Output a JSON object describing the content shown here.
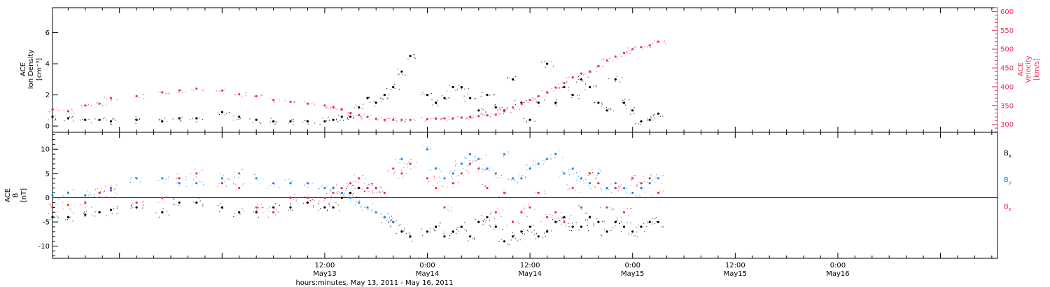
{
  "chart_data": [
    {
      "type": "scatter",
      "panel": "top",
      "ylabel_left": [
        "ACE",
        "Ion Density",
        "[cm⁻³]"
      ],
      "ylabel_right": [
        "ACE",
        "Velocity",
        "[km/s]"
      ],
      "ylim_left": [
        -0.4,
        7.6
      ],
      "ylim_right": [
        279,
        610
      ],
      "yticks_left": [
        0,
        2,
        4,
        6
      ],
      "yticks_right": [
        300,
        350,
        400,
        450,
        500,
        550,
        600
      ],
      "color_left": "#000000",
      "color_right": "#e8305a",
      "series": [
        {
          "axis": "left",
          "color": "#000000",
          "x": [
            "2011-05-12T04:10",
            "2011-05-12T06:00",
            "2011-05-12T08:00",
            "2011-05-12T09:40",
            "2011-05-12T11:00",
            "2011-05-12T14:00",
            "2011-05-12T17:00",
            "2011-05-12T19:00",
            "2011-05-12T21:00",
            "2011-05-13T00:00",
            "2011-05-13T02:00",
            "2011-05-13T04:00",
            "2011-05-13T06:00",
            "2011-05-13T08:00",
            "2011-05-13T10:00",
            "2011-05-13T12:00",
            "2011-05-13T13:00",
            "2011-05-13T14:00",
            "2011-05-13T15:00",
            "2011-05-13T16:00",
            "2011-05-13T17:00",
            "2011-05-13T18:00",
            "2011-05-13T19:00",
            "2011-05-13T20:00",
            "2011-05-13T21:00",
            "2011-05-13T22:00",
            "2011-05-14T00:00",
            "2011-05-14T01:00",
            "2011-05-14T02:00",
            "2011-05-14T03:00",
            "2011-05-14T04:00",
            "2011-05-14T05:00",
            "2011-05-14T06:00",
            "2011-05-14T07:00",
            "2011-05-14T08:00",
            "2011-05-14T09:00",
            "2011-05-14T10:00",
            "2011-05-14T11:00",
            "2011-05-14T12:00",
            "2011-05-14T13:00",
            "2011-05-14T14:00",
            "2011-05-14T15:00",
            "2011-05-14T16:00",
            "2011-05-14T17:00",
            "2011-05-14T18:00",
            "2011-05-14T19:00",
            "2011-05-14T20:00",
            "2011-05-14T21:00",
            "2011-05-14T22:00",
            "2011-05-14T23:00",
            "2011-05-15T00:00",
            "2011-05-15T01:00",
            "2011-05-15T02:00",
            "2011-05-15T03:00"
          ],
          "y": [
            0.6,
            0.5,
            0.4,
            0.4,
            0.3,
            0.4,
            0.3,
            0.5,
            0.5,
            0.9,
            0.6,
            0.4,
            0.3,
            0.3,
            0.3,
            0.3,
            0.4,
            0.6,
            0.6,
            1.2,
            1.8,
            1.5,
            2.0,
            2.5,
            3.5,
            4.5,
            2.0,
            1.5,
            1.8,
            2.5,
            2.5,
            1.8,
            1.0,
            2.0,
            1.2,
            1.0,
            3.0,
            1.5,
            0.4,
            1.5,
            4.0,
            1.5,
            2.5,
            2.0,
            3.0,
            2.5,
            1.5,
            1.0,
            3.0,
            1.5,
            1.0,
            0.3,
            0.4,
            0.8
          ]
        },
        {
          "axis": "right",
          "color": "#e8305a",
          "x": [
            "2011-05-12T04:10",
            "2011-05-12T06:00",
            "2011-05-12T08:00",
            "2011-05-12T09:40",
            "2011-05-12T11:00",
            "2011-05-12T14:00",
            "2011-05-12T17:00",
            "2011-05-12T19:00",
            "2011-05-12T21:00",
            "2011-05-13T00:00",
            "2011-05-13T02:00",
            "2011-05-13T04:00",
            "2011-05-13T06:00",
            "2011-05-13T08:00",
            "2011-05-13T10:00",
            "2011-05-13T12:00",
            "2011-05-13T13:00",
            "2011-05-13T14:00",
            "2011-05-13T15:00",
            "2011-05-13T16:00",
            "2011-05-13T17:00",
            "2011-05-13T18:00",
            "2011-05-13T19:00",
            "2011-05-13T20:00",
            "2011-05-13T21:00",
            "2011-05-13T22:00",
            "2011-05-14T00:00",
            "2011-05-14T01:00",
            "2011-05-14T02:00",
            "2011-05-14T03:00",
            "2011-05-14T04:00",
            "2011-05-14T05:00",
            "2011-05-14T06:00",
            "2011-05-14T07:00",
            "2011-05-14T08:00",
            "2011-05-14T09:00",
            "2011-05-14T10:00",
            "2011-05-14T11:00",
            "2011-05-14T12:00",
            "2011-05-14T13:00",
            "2011-05-14T14:00",
            "2011-05-14T15:00",
            "2011-05-14T16:00",
            "2011-05-14T17:00",
            "2011-05-14T18:00",
            "2011-05-14T19:00",
            "2011-05-14T20:00",
            "2011-05-14T21:00",
            "2011-05-14T22:00",
            "2011-05-14T23:00",
            "2011-05-15T00:00",
            "2011-05-15T01:00",
            "2011-05-15T02:00",
            "2011-05-15T03:00"
          ],
          "y": [
            340,
            335,
            350,
            355,
            370,
            375,
            385,
            390,
            395,
            390,
            380,
            375,
            365,
            360,
            355,
            350,
            345,
            340,
            330,
            325,
            320,
            315,
            312,
            312,
            312,
            312,
            314,
            315,
            316,
            316,
            318,
            320,
            322,
            324,
            326,
            335,
            345,
            355,
            365,
            375,
            385,
            398,
            410,
            425,
            435,
            440,
            455,
            470,
            480,
            490,
            500,
            505,
            510,
            520
          ]
        }
      ]
    },
    {
      "type": "scatter",
      "panel": "bottom",
      "ylabel": [
        "ACE",
        "B",
        "[nT]"
      ],
      "ylim": [
        -12.5,
        13.5
      ],
      "yticks": [
        -10,
        -5,
        0,
        5,
        10
      ],
      "zero_line": true,
      "legend": [
        {
          "label": "Bx",
          "base": "B",
          "sub": "x",
          "color": "#000000"
        },
        {
          "label": "By",
          "base": "B",
          "sub": "y",
          "color": "#1e88e5"
        },
        {
          "label": "Bz",
          "base": "B",
          "sub": "z",
          "color": "#e8305a"
        }
      ],
      "series": [
        {
          "name": "Bx",
          "color": "#000000",
          "x": [
            "2011-05-12T04:10",
            "2011-05-12T06:00",
            "2011-05-12T08:00",
            "2011-05-12T09:40",
            "2011-05-12T11:00",
            "2011-05-12T14:00",
            "2011-05-12T17:00",
            "2011-05-12T19:00",
            "2011-05-12T21:00",
            "2011-05-13T00:00",
            "2011-05-13T02:00",
            "2011-05-13T04:00",
            "2011-05-13T06:00",
            "2011-05-13T08:00",
            "2011-05-13T10:00",
            "2011-05-13T12:00",
            "2011-05-13T13:00",
            "2011-05-13T14:00",
            "2011-05-13T15:00",
            "2011-05-13T16:00",
            "2011-05-13T17:00",
            "2011-05-13T18:00",
            "2011-05-13T19:00",
            "2011-05-13T20:00",
            "2011-05-13T21:00",
            "2011-05-13T22:00",
            "2011-05-14T00:00",
            "2011-05-14T01:00",
            "2011-05-14T02:00",
            "2011-05-14T03:00",
            "2011-05-14T04:00",
            "2011-05-14T05:00",
            "2011-05-14T06:00",
            "2011-05-14T07:00",
            "2011-05-14T08:00",
            "2011-05-14T09:00",
            "2011-05-14T10:00",
            "2011-05-14T11:00",
            "2011-05-14T12:00",
            "2011-05-14T13:00",
            "2011-05-14T14:00",
            "2011-05-14T15:00",
            "2011-05-14T16:00",
            "2011-05-14T17:00",
            "2011-05-14T18:00",
            "2011-05-14T19:00",
            "2011-05-14T20:00",
            "2011-05-14T21:00",
            "2011-05-14T22:00",
            "2011-05-14T23:00",
            "2011-05-15T00:00",
            "2011-05-15T01:00",
            "2011-05-15T02:00",
            "2011-05-15T03:00"
          ],
          "y": [
            -4,
            -4,
            -3.5,
            -3,
            -2.5,
            -2,
            -3,
            -1,
            -1,
            -2,
            -3,
            -3,
            -2,
            -2,
            -1,
            -2,
            -2,
            0,
            1,
            2,
            2,
            2,
            -4,
            -5,
            -7,
            -8,
            -7,
            -6,
            -8,
            -7,
            -6,
            -8,
            -5,
            -4,
            -6,
            -9,
            -8,
            -7,
            -6,
            -8,
            -7,
            -5,
            -4,
            -6,
            -6,
            -4,
            -5,
            -7,
            -5,
            -6,
            -7,
            -6,
            -5,
            -5
          ]
        },
        {
          "name": "By",
          "color": "#1e88e5",
          "x": [
            "2011-05-12T04:10",
            "2011-05-12T06:00",
            "2011-05-12T08:00",
            "2011-05-12T09:40",
            "2011-05-12T11:00",
            "2011-05-12T14:00",
            "2011-05-12T17:00",
            "2011-05-12T19:00",
            "2011-05-12T21:00",
            "2011-05-13T00:00",
            "2011-05-13T02:00",
            "2011-05-13T04:00",
            "2011-05-13T06:00",
            "2011-05-13T08:00",
            "2011-05-13T10:00",
            "2011-05-13T12:00",
            "2011-05-13T13:00",
            "2011-05-13T14:00",
            "2011-05-13T15:00",
            "2011-05-13T16:00",
            "2011-05-13T17:00",
            "2011-05-13T18:00",
            "2011-05-13T19:00",
            "2011-05-13T20:00",
            "2011-05-13T21:00",
            "2011-05-13T22:00",
            "2011-05-14T00:00",
            "2011-05-14T01:00",
            "2011-05-14T02:00",
            "2011-05-14T03:00",
            "2011-05-14T04:00",
            "2011-05-14T05:00",
            "2011-05-14T06:00",
            "2011-05-14T07:00",
            "2011-05-14T08:00",
            "2011-05-14T09:00",
            "2011-05-14T10:00",
            "2011-05-14T11:00",
            "2011-05-14T12:00",
            "2011-05-14T13:00",
            "2011-05-14T14:00",
            "2011-05-14T15:00",
            "2011-05-14T16:00",
            "2011-05-14T17:00",
            "2011-05-14T18:00",
            "2011-05-14T19:00",
            "2011-05-14T20:00",
            "2011-05-14T21:00",
            "2011-05-14T22:00",
            "2011-05-14T23:00",
            "2011-05-15T00:00",
            "2011-05-15T01:00",
            "2011-05-15T02:00",
            "2011-05-15T03:00"
          ],
          "y": [
            0.5,
            1,
            0.5,
            1,
            1.5,
            4,
            4,
            3,
            3,
            4,
            5,
            4,
            3,
            3,
            3,
            2,
            2,
            1,
            0,
            -1,
            -2,
            -3,
            -4,
            -5,
            8,
            7,
            10,
            6,
            4,
            5,
            7,
            9,
            8,
            6,
            5,
            9,
            4,
            4,
            6,
            7,
            8,
            9,
            5,
            6,
            4,
            3,
            5,
            2,
            3,
            2,
            1,
            2,
            3,
            4
          ]
        },
        {
          "name": "Bz",
          "color": "#e8305a",
          "x": [
            "2011-05-12T04:10",
            "2011-05-12T06:00",
            "2011-05-12T08:00",
            "2011-05-12T09:40",
            "2011-05-12T11:00",
            "2011-05-12T14:00",
            "2011-05-12T17:00",
            "2011-05-12T19:00",
            "2011-05-12T21:00",
            "2011-05-13T00:00",
            "2011-05-13T02:00",
            "2011-05-13T04:00",
            "2011-05-13T06:00",
            "2011-05-13T08:00",
            "2011-05-13T10:00",
            "2011-05-13T12:00",
            "2011-05-13T13:00",
            "2011-05-13T14:00",
            "2011-05-13T15:00",
            "2011-05-13T16:00",
            "2011-05-13T17:00",
            "2011-05-13T18:00",
            "2011-05-13T19:00",
            "2011-05-13T20:00",
            "2011-05-13T21:00",
            "2011-05-13T22:00",
            "2011-05-14T00:00",
            "2011-05-14T01:00",
            "2011-05-14T02:00",
            "2011-05-14T03:00",
            "2011-05-14T04:00",
            "2011-05-14T05:00",
            "2011-05-14T06:00",
            "2011-05-14T07:00",
            "2011-05-14T08:00",
            "2011-05-14T09:00",
            "2011-05-14T10:00",
            "2011-05-14T11:00",
            "2011-05-14T12:00",
            "2011-05-14T13:00",
            "2011-05-14T14:00",
            "2011-05-14T15:00",
            "2011-05-14T16:00",
            "2011-05-14T17:00",
            "2011-05-14T18:00",
            "2011-05-14T19:00",
            "2011-05-14T20:00",
            "2011-05-14T21:00",
            "2011-05-14T22:00",
            "2011-05-14T23:00",
            "2011-05-15T00:00",
            "2011-05-15T01:00",
            "2011-05-15T02:00",
            "2011-05-15T03:00"
          ],
          "y": [
            -2,
            -1.5,
            -1,
            1,
            2,
            -1,
            0,
            4,
            5,
            3,
            2,
            -2,
            -3,
            0,
            0,
            0,
            1,
            2,
            3,
            4,
            2,
            2,
            1,
            6,
            5,
            7,
            4,
            2,
            -2,
            3,
            5,
            7,
            6,
            2,
            -3,
            1,
            -5,
            -3,
            -2,
            1,
            -4,
            -3,
            -5,
            2,
            -2,
            5,
            3,
            -2,
            2,
            -3,
            4,
            3,
            4,
            1
          ]
        }
      ]
    }
  ],
  "x_axis": {
    "ticks": [
      {
        "time": "12:00",
        "date": "May13"
      },
      {
        "time": "0:00",
        "date": "May14"
      },
      {
        "time": "12:00",
        "date": "May14"
      },
      {
        "time": "0:00",
        "date": "May15"
      },
      {
        "time": "12:00",
        "date": "May15"
      },
      {
        "time": "0:00",
        "date": "May16"
      }
    ],
    "xlabel": "hours:minutes, May 13, 2011 - May 16, 2011"
  }
}
